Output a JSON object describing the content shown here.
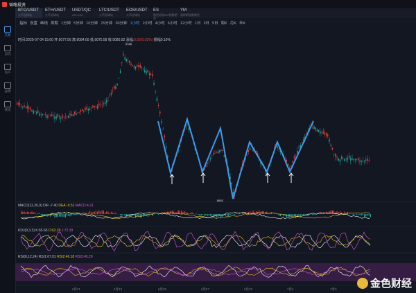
{
  "app": {
    "name": "韬略投资"
  },
  "tabs": [
    {
      "title": "BTC/USDT",
      "sub": "火币全球站",
      "active": true
    },
    {
      "title": "ETH/USDT",
      "sub": "火币全球站"
    },
    {
      "title": "USDT/QC",
      "sub": "ZB.COM"
    },
    {
      "title": "LTC/USDT",
      "sub": "火币全球站"
    },
    {
      "title": "EOS/USDT",
      "sub": "火币全球站"
    },
    {
      "title": "ES",
      "sub": "微型标普500指数期货"
    },
    {
      "title": "YM",
      "sub": "道琼斯指数期货"
    }
  ],
  "toolbar": {
    "items": [
      "指标",
      "设置",
      "画线",
      "周期",
      "1分钟",
      "5分钟",
      "10分钟",
      "15分钟",
      "30分钟",
      "1小时",
      "2小时",
      "4小时",
      "6小时",
      "12小时",
      "1日",
      "3日",
      "5日",
      "周K",
      "月K",
      "年K"
    ],
    "selected": "1小时"
  },
  "sidebar": [
    {
      "label": "交易",
      "active": true
    },
    {
      "label": "自选"
    },
    {
      "label": "资产"
    },
    {
      "label": "返佣"
    },
    {
      "label": "快讯"
    }
  ],
  "info": {
    "time": "时间:2020-07-04 15:00",
    "open": "开:9077.56",
    "high": "高:9084.60",
    "low": "低:9075.58",
    "close": "收:9080.92",
    "change_label": "涨幅:",
    "change": "3.03(0.03%)",
    "amplitude": "振幅0.10%"
  },
  "price_high": "9785",
  "price_low": "8841",
  "macd": {
    "name": "MACD(12,26,9)",
    "dif": "DIF:-7.40",
    "dea": "DEA:-9.51",
    "macd": "MACD:4.21"
  },
  "kdj": {
    "name": "KDJ(9,3,3)",
    "k": "K:65.66",
    "d": "D:62.29",
    "j": "J:72.39"
  },
  "rsi": {
    "name": "RSI(6,12,24)",
    "rsi1": "RSI1:67.01",
    "rsi2": "RSI2:46.18",
    "rsi3": "RSI3:45.29"
  },
  "xaxis": [
    "6月21",
    "6月23",
    "6月25",
    "6月27",
    "6月29",
    "7月1",
    "7月3"
  ],
  "watermark": "金色财经",
  "colors": {
    "up": "#26a69a",
    "down": "#e0413b",
    "wave": "#3b9cf0",
    "arrow": "#ffffff"
  }
}
